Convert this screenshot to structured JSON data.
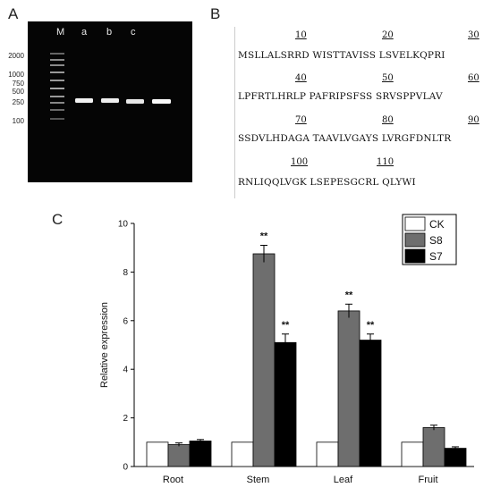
{
  "panels": {
    "a": "A",
    "b": "B",
    "c": "C"
  },
  "gel": {
    "lane_labels": [
      "M",
      "a",
      "b",
      "c"
    ],
    "ladder_labels": [
      "2000",
      "1000",
      "750",
      "500",
      "250",
      "100"
    ]
  },
  "sequence": {
    "numbers": [
      "10",
      "20",
      "30",
      "40",
      "50",
      "60",
      "70",
      "80",
      "90",
      "100",
      "110"
    ],
    "lines": [
      "MSLLALSRRD WISTTAVISS LSVELKQPRI",
      "LPFRTLHRLP PAFRIPSFSS SRVSPPVLAV",
      "SSDVLHDAGA TAAVLVGAYS LVRGFDNLTR",
      "RNLIQQLVGK LSEPESGCRL QLYWI"
    ]
  },
  "chart_data": {
    "type": "bar",
    "categories": [
      "Root",
      "Stem",
      "Leaf",
      "Fruit"
    ],
    "series": [
      {
        "name": "CK",
        "values": [
          1.0,
          1.0,
          1.0,
          1.0
        ],
        "errors": [
          0,
          0,
          0,
          0
        ],
        "color": "#ffffff"
      },
      {
        "name": "S8",
        "values": [
          0.9,
          8.75,
          6.4,
          1.6
        ],
        "errors": [
          0.07,
          0.35,
          0.28,
          0.1
        ],
        "color": "#6e6e6e"
      },
      {
        "name": "S7",
        "values": [
          1.05,
          5.1,
          5.2,
          0.75
        ],
        "errors": [
          0.06,
          0.35,
          0.25,
          0.06
        ],
        "color": "#000000"
      }
    ],
    "significance": [
      {
        "category": "Stem",
        "series": "S8",
        "label": "**"
      },
      {
        "category": "Stem",
        "series": "S7",
        "label": "**"
      },
      {
        "category": "Leaf",
        "series": "S8",
        "label": "**"
      },
      {
        "category": "Leaf",
        "series": "S7",
        "label": "**"
      }
    ],
    "ylabel": "Relative expression",
    "xlabel": "",
    "ylim": [
      0,
      10
    ],
    "yticks": [
      "0",
      "2",
      "4",
      "6",
      "8",
      "10"
    ],
    "legend": "top-right",
    "grid": false
  }
}
